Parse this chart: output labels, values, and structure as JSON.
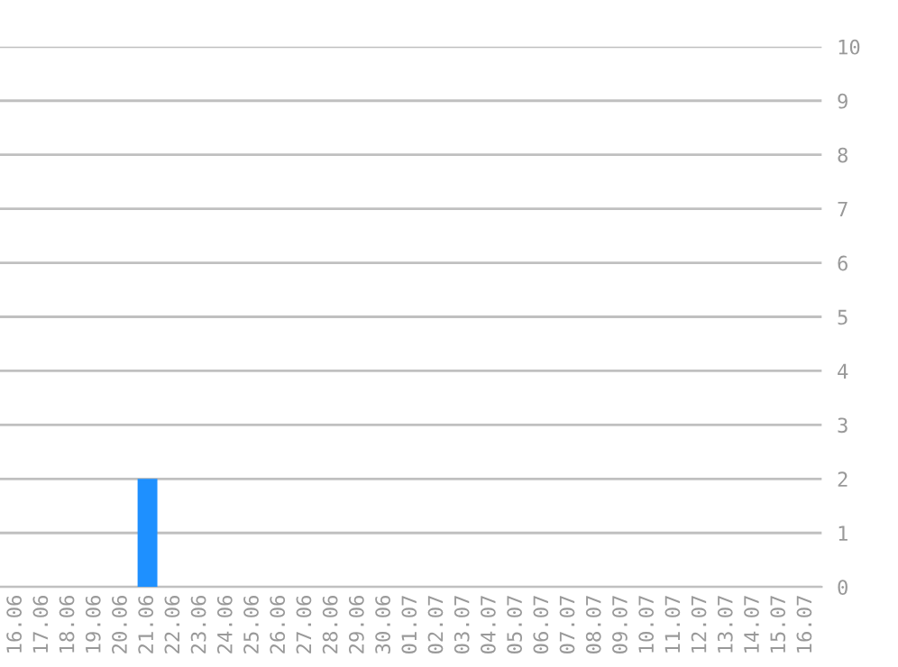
{
  "chart_data": {
    "type": "bar",
    "categories": [
      "16.06",
      "17.06",
      "18.06",
      "19.06",
      "20.06",
      "21.06",
      "22.06",
      "23.06",
      "24.06",
      "25.06",
      "26.06",
      "27.06",
      "28.06",
      "29.06",
      "30.06",
      "01.07",
      "02.07",
      "03.07",
      "04.07",
      "05.07",
      "06.07",
      "07.07",
      "08.07",
      "09.07",
      "10.07",
      "11.07",
      "12.07",
      "13.07",
      "14.07",
      "15.07",
      "16.07"
    ],
    "values": [
      0,
      0,
      0,
      0,
      0,
      2,
      0,
      0,
      0,
      0,
      0,
      0,
      0,
      0,
      0,
      0,
      0,
      0,
      0,
      0,
      0,
      0,
      0,
      0,
      0,
      0,
      0,
      0,
      0,
      0,
      0
    ],
    "color": "#1e90ff",
    "ylim": [
      0,
      10
    ],
    "yticks": [
      0,
      1,
      2,
      3,
      4,
      5,
      6,
      7,
      8,
      9,
      10
    ],
    "grid": "y",
    "legend": false
  }
}
